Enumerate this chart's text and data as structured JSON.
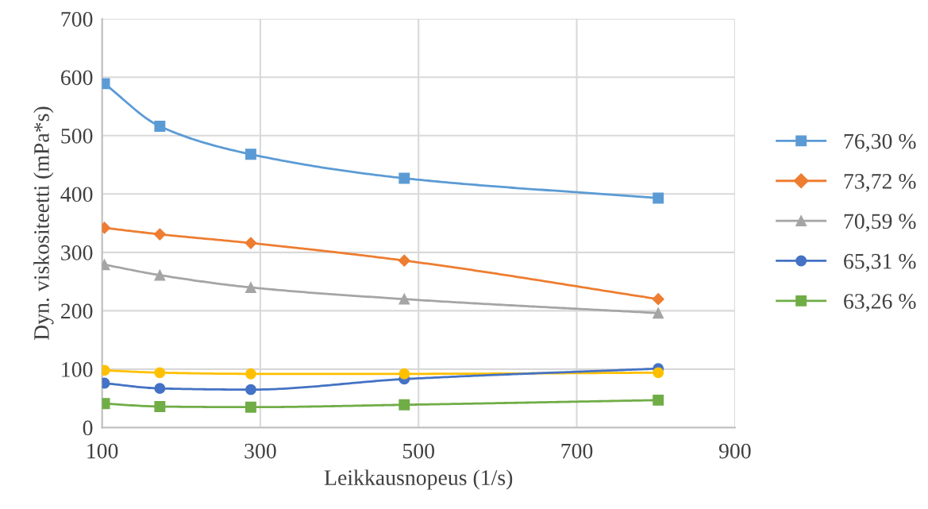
{
  "chart_data": {
    "type": "line",
    "xlabel": "Leikkausnopeus (1/s)",
    "ylabel": "Dyn. viskositeetti (mPa*s)",
    "x": [
      103,
      173,
      288,
      482,
      803
    ],
    "xlim": [
      100,
      900
    ],
    "xticks": [
      100,
      300,
      500,
      700,
      900
    ],
    "ylim": [
      0,
      700
    ],
    "yticks": [
      0,
      100,
      200,
      300,
      400,
      500,
      600,
      700
    ],
    "grid": true,
    "legend": "right",
    "series": [
      {
        "name": "76,30 %",
        "color": "#5b9bd5",
        "marker": "square",
        "values": [
          589,
          516,
          468,
          427,
          393
        ]
      },
      {
        "name": "73,72 %",
        "color": "#ed7d31",
        "marker": "diamond",
        "values": [
          342,
          331,
          316,
          286,
          220
        ]
      },
      {
        "name": "70,59 %",
        "color": "#a5a5a5",
        "marker": "triangle",
        "values": [
          279,
          261,
          240,
          220,
          196
        ]
      },
      {
        "color": "#ffc000",
        "marker": "circle",
        "values": [
          98,
          94,
          92,
          92,
          94
        ]
      },
      {
        "name": "65,31 %",
        "color": "#4472c4",
        "marker": "circle",
        "values": [
          76,
          67,
          65,
          83,
          101
        ]
      },
      {
        "name": "63,26 %",
        "color": "#70ad47",
        "marker": "square",
        "values": [
          41,
          36,
          35,
          39,
          47
        ]
      }
    ]
  }
}
